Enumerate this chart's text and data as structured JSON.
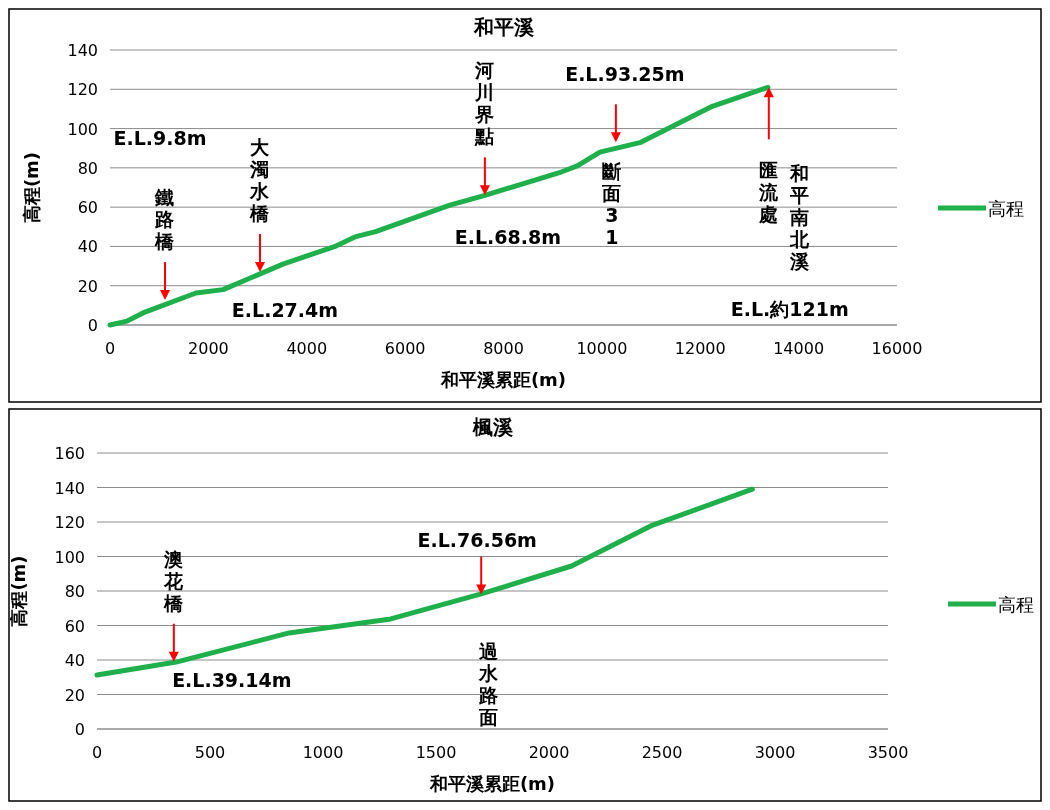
{
  "chart_data": [
    {
      "type": "line",
      "title": "和平溪",
      "xlabel": "和平溪累距(m)",
      "ylabel": "高程(m)",
      "xlim": [
        0,
        16000
      ],
      "xticks": [
        0,
        2000,
        4000,
        6000,
        8000,
        10000,
        12000,
        14000,
        16000
      ],
      "ylim": [
        0,
        140
      ],
      "yticks": [
        0,
        20,
        40,
        60,
        80,
        100,
        120,
        140
      ],
      "grid": "y",
      "legend": "right",
      "marker": "none",
      "x": [
        0,
        350,
        711,
        1748,
        2300,
        3516,
        4593,
        5000,
        5400,
        6911,
        7622,
        9187,
        9500,
        9960,
        10793,
        12215,
        13374
      ],
      "series": [
        {
          "name": "高程",
          "color": "#1fb04b",
          "values": [
            0,
            2,
            6.6,
            16.3,
            18,
            31,
            40.2,
            45,
            47.5,
            61,
            66,
            78,
            81,
            88,
            93,
            111,
            121
          ]
        }
      ],
      "annotations": [
        {
          "text": "鐵路橋",
          "x": 1118,
          "y": 12.7
        },
        {
          "text": "大濁水橋",
          "x": 3049,
          "y": 27
        },
        {
          "text": "河川界點",
          "x": 7622,
          "y": 66
        },
        {
          "text": "斷面31",
          "x": 10285,
          "y": 93
        },
        {
          "text": "匯流處",
          "x": 13394,
          "y": 121
        },
        "和平南北溪",
        "E.L.9.8m",
        {
          "text": "E.L.27.4m",
          "x": 3049,
          "y": 27
        },
        {
          "text": "E.L.68.8m",
          "x": 7622,
          "y": 66
        },
        {
          "text": "E.L.93.25m",
          "x": 10285,
          "y": 93
        },
        "E.L.約121m"
      ]
    },
    {
      "type": "line",
      "title": "楓溪",
      "xlabel": "和平溪累距(m)",
      "ylabel": "高程(m)",
      "xlim": [
        0,
        3500
      ],
      "xticks": [
        0,
        500,
        1000,
        1500,
        2000,
        2500,
        3000,
        3500
      ],
      "ylim": [
        0,
        160
      ],
      "yticks": [
        0,
        20,
        40,
        60,
        80,
        100,
        120,
        140,
        160
      ],
      "grid": "y",
      "legend": "right",
      "marker": "none",
      "x": [
        0,
        350,
        850,
        1300,
        1700,
        2100,
        2450,
        2900
      ],
      "series": [
        {
          "name": "高程",
          "color": "#1fb04b",
          "values": [
            31.3,
            38.8,
            55.7,
            63.8,
            78.3,
            94.5,
            117.7,
            139
          ]
        }
      ],
      "annotations": [
        {
          "text": "澳花橋",
          "x": 340,
          "y": 39
        },
        {
          "text": "E.L.39.14m",
          "x": 340,
          "y": 39
        },
        {
          "text": "過水路面",
          "x": 1700,
          "y": 78
        },
        {
          "text": "E.L.76.56m",
          "x": 1700,
          "y": 78
        }
      ]
    }
  ]
}
